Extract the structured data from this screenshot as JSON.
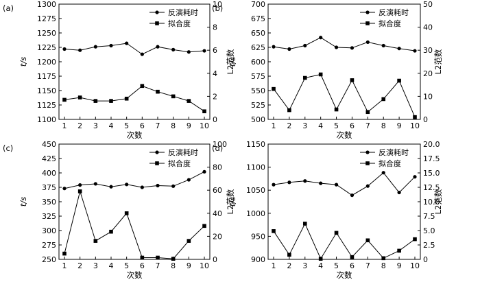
{
  "figure": {
    "panel_labels": [
      "(a)",
      "(b)",
      "(c)",
      "(d)"
    ]
  },
  "chart_data": [
    {
      "type": "line",
      "panel": "(a)",
      "xlabel": "次数",
      "ylabel": "t/s",
      "y2label": "L2范数",
      "x": [
        1,
        2,
        3,
        4,
        5,
        6,
        7,
        8,
        9,
        10
      ],
      "ylim": [
        1100,
        1300
      ],
      "yticks": [
        1100,
        1125,
        1150,
        1175,
        1200,
        1225,
        1250,
        1275,
        1300
      ],
      "y2lim": [
        0,
        10
      ],
      "y2ticks": [
        0,
        2,
        4,
        6,
        8,
        10
      ],
      "legend_position": "top-right",
      "series": [
        {
          "name": "反演耗时",
          "axis": "left",
          "marker": "circle",
          "values": [
            1222,
            1220,
            1226,
            1228,
            1232,
            1213,
            1226,
            1221,
            1217,
            1219
          ]
        },
        {
          "name": "拟合度",
          "axis": "right",
          "marker": "square",
          "values": [
            1.7,
            1.9,
            1.6,
            1.6,
            1.8,
            2.9,
            2.4,
            2.0,
            1.6,
            0.7
          ]
        }
      ]
    },
    {
      "type": "line",
      "panel": "(b)",
      "xlabel": "次数",
      "ylabel": "t/s",
      "y2label": "L2范数",
      "x": [
        1,
        2,
        3,
        4,
        5,
        6,
        7,
        8,
        9,
        10
      ],
      "ylim": [
        500,
        700
      ],
      "yticks": [
        500,
        525,
        550,
        575,
        600,
        625,
        650,
        675,
        700
      ],
      "y2lim": [
        0,
        50
      ],
      "y2ticks": [
        0,
        10,
        20,
        30,
        40,
        50
      ],
      "legend_position": "top-right",
      "series": [
        {
          "name": "反演耗时",
          "axis": "left",
          "marker": "circle",
          "values": [
            626,
            622,
            628,
            642,
            625,
            624,
            634,
            628,
            623,
            619
          ]
        },
        {
          "name": "拟合度",
          "axis": "right",
          "marker": "square",
          "values": [
            13.2,
            4.0,
            18.0,
            19.5,
            4.3,
            17.0,
            3.2,
            8.8,
            16.8,
            1.0
          ]
        }
      ]
    },
    {
      "type": "line",
      "panel": "(c)",
      "xlabel": "次数",
      "ylabel": "t/s",
      "y2label": "L2范数",
      "x": [
        1,
        2,
        3,
        4,
        5,
        6,
        7,
        8,
        9,
        10
      ],
      "ylim": [
        250,
        450
      ],
      "yticks": [
        250,
        275,
        300,
        325,
        350,
        375,
        400,
        425,
        450
      ],
      "y2lim": [
        0,
        100
      ],
      "y2ticks": [
        0,
        20,
        40,
        60,
        80,
        100
      ],
      "legend_position": "top-right",
      "series": [
        {
          "name": "反演耗时",
          "axis": "left",
          "marker": "circle",
          "values": [
            373,
            379,
            381,
            376,
            380,
            375,
            378,
            377,
            388,
            402
          ]
        },
        {
          "name": "拟合度",
          "axis": "right",
          "marker": "square",
          "values": [
            5,
            59,
            16,
            24,
            40,
            1.5,
            1.5,
            0.5,
            16,
            29
          ]
        }
      ]
    },
    {
      "type": "line",
      "panel": "(d)",
      "xlabel": "次数",
      "ylabel": "t/s",
      "y2label": "L2范数",
      "x": [
        1,
        2,
        3,
        4,
        5,
        6,
        7,
        8,
        9,
        10
      ],
      "ylim": [
        900,
        1150
      ],
      "yticks": [
        900,
        950,
        1000,
        1050,
        1100,
        1150
      ],
      "y2lim": [
        0,
        20
      ],
      "y2ticks": [
        0.0,
        2.5,
        5.0,
        7.5,
        10.0,
        12.5,
        15.0,
        17.5,
        20.0
      ],
      "y2ticklabels": [
        "0",
        "2.5",
        "5.0",
        "7.5",
        "10.0",
        "12.5",
        "15.0",
        "17.5",
        "20.0"
      ],
      "legend_position": "top-right",
      "series": [
        {
          "name": "反演耗时",
          "axis": "left",
          "marker": "circle",
          "values": [
            1062,
            1067,
            1070,
            1065,
            1062,
            1039,
            1059,
            1088,
            1045,
            1079
          ]
        },
        {
          "name": "拟合度",
          "axis": "right",
          "marker": "square",
          "values": [
            4.9,
            0.8,
            6.2,
            0.1,
            4.6,
            0.4,
            3.3,
            0.2,
            1.5,
            3.5
          ]
        }
      ]
    }
  ]
}
